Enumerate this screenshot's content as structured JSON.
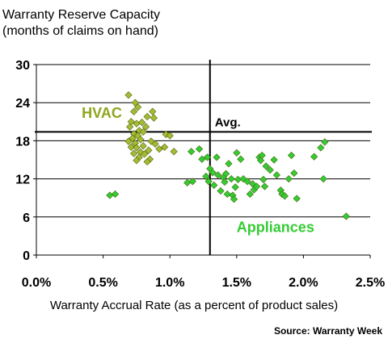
{
  "chart_data": {
    "type": "scatter",
    "title": "Warranty Reserve Capacity",
    "subtitle": "(months of claims on hand)",
    "xlabel": "Warranty Accrual Rate (as a percent of product sales)",
    "ylabel": "",
    "source": "Source: Warranty Week",
    "xlim": [
      0,
      2.5
    ],
    "ylim": [
      0,
      30
    ],
    "xticks": [
      0,
      0.5,
      1.0,
      1.5,
      2.0,
      2.5
    ],
    "xtick_labels": [
      "0.0%",
      "0.5%",
      "1.0%",
      "1.5%",
      "2.0%",
      "2.5%"
    ],
    "yticks": [
      0,
      6,
      12,
      18,
      24,
      30
    ],
    "ytick_labels": [
      "0",
      "6",
      "12",
      "18",
      "24",
      "30"
    ],
    "grid": "horizontal",
    "reference_lines": {
      "avg_x": 1.3,
      "avg_y": 19.4,
      "avg_label": "Avg."
    },
    "annotations": [
      {
        "text": "HVAC",
        "x": 0.34,
        "y": 21.6,
        "color": "#8fa51e"
      },
      {
        "text": "Appliances",
        "x": 1.5,
        "y": 3.6,
        "color": "#33cc33"
      }
    ],
    "series": [
      {
        "name": "HVAC",
        "color": "#a8b933",
        "points": [
          [
            0.69,
            25.2
          ],
          [
            0.74,
            24.0
          ],
          [
            0.76,
            23.3
          ],
          [
            0.73,
            22.6
          ],
          [
            0.87,
            22.6
          ],
          [
            0.83,
            21.8
          ],
          [
            0.88,
            21.6
          ],
          [
            0.71,
            21.0
          ],
          [
            0.75,
            20.7
          ],
          [
            0.79,
            20.9
          ],
          [
            0.7,
            20.2
          ],
          [
            0.77,
            19.6
          ],
          [
            0.82,
            20.2
          ],
          [
            0.73,
            19.1
          ],
          [
            0.76,
            18.8
          ],
          [
            0.8,
            19.4
          ],
          [
            0.97,
            19.0
          ],
          [
            1.0,
            18.8
          ],
          [
            0.72,
            18.4
          ],
          [
            0.78,
            18.2
          ],
          [
            0.69,
            17.9
          ],
          [
            0.74,
            17.6
          ],
          [
            0.86,
            17.9
          ],
          [
            0.89,
            17.5
          ],
          [
            0.71,
            17.0
          ],
          [
            0.75,
            16.9
          ],
          [
            0.8,
            17.2
          ],
          [
            0.84,
            16.5
          ],
          [
            0.92,
            16.7
          ],
          [
            0.96,
            17.0
          ],
          [
            0.78,
            16.2
          ],
          [
            0.73,
            16.0
          ],
          [
            0.77,
            15.4
          ],
          [
            0.81,
            15.9
          ],
          [
            1.03,
            16.3
          ],
          [
            0.85,
            15.1
          ],
          [
            0.75,
            14.9
          ],
          [
            0.83,
            14.7
          ]
        ]
      },
      {
        "name": "Appliances",
        "color": "#33cc33",
        "points": [
          [
            0.55,
            9.4
          ],
          [
            0.59,
            9.6
          ],
          [
            1.13,
            11.4
          ],
          [
            1.16,
            16.3
          ],
          [
            1.17,
            11.6
          ],
          [
            1.22,
            16.7
          ],
          [
            1.24,
            15.1
          ],
          [
            1.27,
            12.4
          ],
          [
            1.28,
            15.4
          ],
          [
            1.29,
            11.6
          ],
          [
            1.3,
            13.6
          ],
          [
            1.32,
            13.0
          ],
          [
            1.33,
            11.0
          ],
          [
            1.35,
            15.4
          ],
          [
            1.36,
            12.6
          ],
          [
            1.38,
            10.1
          ],
          [
            1.4,
            12.2
          ],
          [
            1.41,
            11.5
          ],
          [
            1.42,
            12.8
          ],
          [
            1.43,
            9.6
          ],
          [
            1.44,
            14.4
          ],
          [
            1.46,
            12.0
          ],
          [
            1.47,
            9.4
          ],
          [
            1.48,
            8.8
          ],
          [
            1.49,
            10.7
          ],
          [
            1.5,
            16.1
          ],
          [
            1.51,
            11.9
          ],
          [
            1.53,
            15.1
          ],
          [
            1.55,
            12.0
          ],
          [
            1.58,
            11.6
          ],
          [
            1.6,
            9.6
          ],
          [
            1.62,
            11.2
          ],
          [
            1.63,
            10.3
          ],
          [
            1.65,
            10.8
          ],
          [
            1.67,
            15.4
          ],
          [
            1.68,
            14.9
          ],
          [
            1.69,
            15.7
          ],
          [
            1.7,
            11.9
          ],
          [
            1.71,
            10.8
          ],
          [
            1.72,
            14.0
          ],
          [
            1.75,
            13.4
          ],
          [
            1.78,
            15.0
          ],
          [
            1.8,
            12.6
          ],
          [
            1.83,
            10.2
          ],
          [
            1.84,
            9.6
          ],
          [
            1.86,
            9.3
          ],
          [
            1.89,
            12.0
          ],
          [
            1.91,
            15.7
          ],
          [
            1.93,
            12.9
          ],
          [
            1.95,
            8.9
          ],
          [
            2.08,
            15.5
          ],
          [
            2.13,
            16.9
          ],
          [
            2.15,
            12.0
          ],
          [
            2.16,
            17.8
          ],
          [
            2.32,
            6.1
          ]
        ]
      }
    ]
  }
}
